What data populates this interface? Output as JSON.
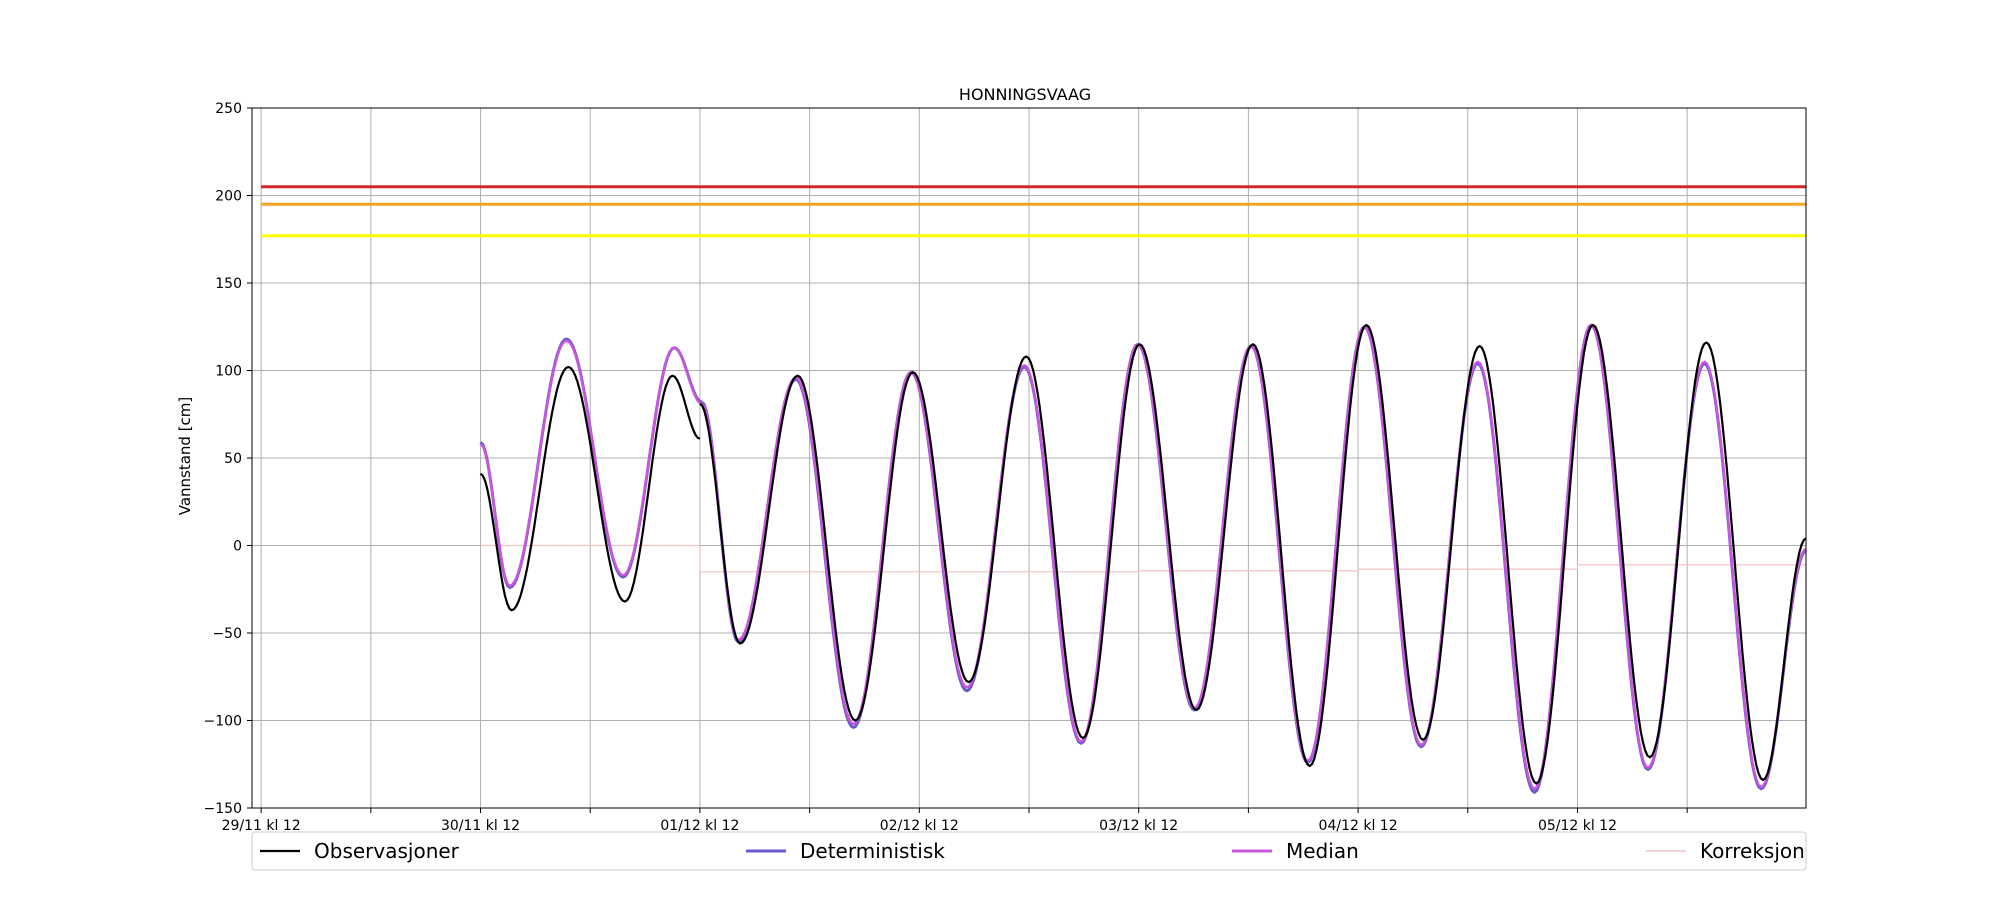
{
  "chart_data": {
    "type": "line",
    "title": "HONNINGSVAAG",
    "xlabel": "",
    "ylabel": "Vannstand [cm]",
    "ylim": [
      -150,
      250
    ],
    "yticks": [
      -150,
      -100,
      -50,
      0,
      50,
      100,
      150,
      200,
      250
    ],
    "xlim_hours": [
      -1,
      169
    ],
    "x_ticks": [
      {
        "hour": 0,
        "label": "29/11 kl 12"
      },
      {
        "hour": 24,
        "label": "30/11 kl 12"
      },
      {
        "hour": 48,
        "label": "01/12 kl 12"
      },
      {
        "hour": 72,
        "label": "02/12 kl 12"
      },
      {
        "hour": 96,
        "label": "03/12 kl 12"
      },
      {
        "hour": 120,
        "label": "04/12 kl 12"
      },
      {
        "hour": 144,
        "label": "05/12 kl 12"
      }
    ],
    "x_minor_ticks_hours": [
      12,
      36,
      60,
      84,
      108,
      132,
      156
    ],
    "grid": true,
    "legend_position": "bottom",
    "thresholds": [
      {
        "value": 205,
        "color": "#d62728"
      },
      {
        "value": 195,
        "color": "#f5a623"
      },
      {
        "value": 177,
        "color": "#ffff00"
      }
    ],
    "series": [
      {
        "name": "Observasjoner",
        "color": "#000000",
        "segments": [
          {
            "start_hour": 24,
            "end_hour": 48.0,
            "anchors": [
              [
                24,
                41
              ],
              [
                27.4,
                -37
              ],
              [
                33.6,
                102
              ],
              [
                39.8,
                -32
              ],
              [
                45.0,
                97
              ],
              [
                48.0,
                61
              ]
            ]
          },
          {
            "start_hour": 48.0,
            "end_hour": 169,
            "anchors": [
              [
                48.0,
                81
              ],
              [
                52.4,
                -56
              ],
              [
                58.7,
                97
              ],
              [
                65.0,
                -100
              ],
              [
                71.3,
                99
              ],
              [
                77.4,
                -78
              ],
              [
                83.7,
                108
              ],
              [
                89.9,
                -110
              ],
              [
                96.1,
                115
              ],
              [
                102.3,
                -94
              ],
              [
                108.5,
                115
              ],
              [
                114.7,
                -126
              ],
              [
                120.9,
                126
              ],
              [
                127.1,
                -111
              ],
              [
                133.3,
                114
              ],
              [
                139.5,
                -136
              ],
              [
                145.7,
                126
              ],
              [
                151.9,
                -121
              ],
              [
                158.1,
                116
              ],
              [
                164.3,
                -134
              ],
              [
                169,
                4
              ]
            ]
          }
        ]
      },
      {
        "name": "Deterministisk",
        "color": "#6a5acd",
        "segments": [
          {
            "start_hour": 24,
            "end_hour": 48.2,
            "anchors": [
              [
                24,
                59
              ],
              [
                27.2,
                -24
              ],
              [
                33.4,
                118
              ],
              [
                39.6,
                -18
              ],
              [
                45.2,
                113
              ],
              [
                48.2,
                82
              ]
            ]
          },
          {
            "start_hour": 48.2,
            "end_hour": 169,
            "anchors": [
              [
                48.2,
                82
              ],
              [
                52.2,
                -55
              ],
              [
                58.5,
                95
              ],
              [
                64.8,
                -104
              ],
              [
                71.1,
                99
              ],
              [
                77.2,
                -83
              ],
              [
                83.5,
                102
              ],
              [
                89.7,
                -113
              ],
              [
                95.9,
                115
              ],
              [
                102.1,
                -94
              ],
              [
                108.3,
                114
              ],
              [
                114.5,
                -124
              ],
              [
                120.7,
                125
              ],
              [
                126.9,
                -115
              ],
              [
                133.1,
                104
              ],
              [
                139.3,
                -141
              ],
              [
                145.5,
                126
              ],
              [
                151.7,
                -128
              ],
              [
                157.9,
                104
              ],
              [
                164.1,
                -139
              ],
              [
                169,
                -3
              ]
            ]
          }
        ]
      },
      {
        "name": "Median",
        "color": "#cc55dd",
        "segments": [
          {
            "start_hour": 24,
            "end_hour": 48.2,
            "anchors": [
              [
                24,
                58
              ],
              [
                27.2,
                -23
              ],
              [
                33.4,
                117
              ],
              [
                39.6,
                -17
              ],
              [
                45.2,
                113
              ],
              [
                48.2,
                81
              ]
            ]
          },
          {
            "start_hour": 48.2,
            "end_hour": 169,
            "anchors": [
              [
                48.2,
                81
              ],
              [
                52.2,
                -54
              ],
              [
                58.5,
                96
              ],
              [
                64.8,
                -102
              ],
              [
                71.1,
                99
              ],
              [
                77.2,
                -81
              ],
              [
                83.5,
                103
              ],
              [
                89.7,
                -112
              ],
              [
                95.9,
                115
              ],
              [
                102.1,
                -93
              ],
              [
                108.3,
                114
              ],
              [
                114.5,
                -123
              ],
              [
                120.7,
                125
              ],
              [
                126.9,
                -114
              ],
              [
                133.1,
                105
              ],
              [
                139.3,
                -139
              ],
              [
                145.5,
                126
              ],
              [
                151.7,
                -127
              ],
              [
                157.9,
                105
              ],
              [
                164.1,
                -138
              ],
              [
                169,
                -2
              ]
            ]
          }
        ]
      },
      {
        "name": "Korreksjon",
        "color": "#f4c2c2",
        "steps": [
          [
            24,
            0
          ],
          [
            48,
            0
          ],
          [
            48,
            -15
          ],
          [
            96,
            -15
          ],
          [
            96,
            -14.5
          ],
          [
            120,
            -14.5
          ],
          [
            120,
            -13.5
          ],
          [
            144,
            -13.5
          ],
          [
            144,
            -11
          ],
          [
            169,
            -11
          ]
        ]
      }
    ]
  },
  "legend": {
    "items": [
      {
        "label": "Observasjoner",
        "color": "#000000"
      },
      {
        "label": "Deterministisk",
        "color": "#6a5acd"
      },
      {
        "label": "Median",
        "color": "#cc55dd"
      },
      {
        "label": "Korreksjon",
        "color": "#f4c2c2"
      }
    ]
  }
}
